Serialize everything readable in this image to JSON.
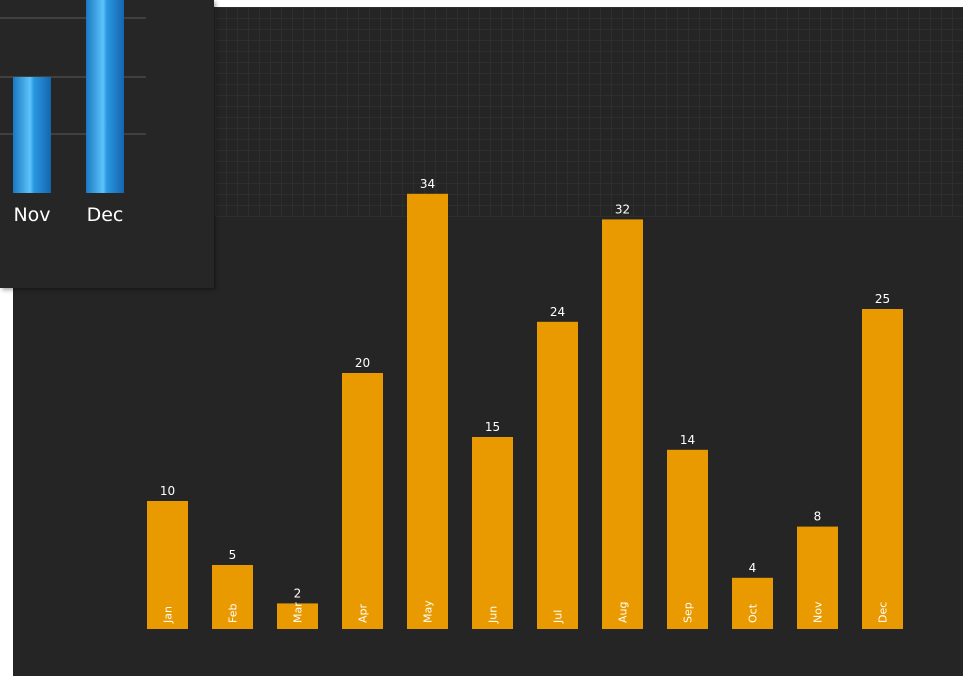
{
  "chart_data": [
    {
      "type": "bar",
      "categories": [
        "Jan",
        "Feb",
        "Mar",
        "Apr",
        "May",
        "Jun",
        "Jul",
        "Aug",
        "Sep",
        "Oct",
        "Nov",
        "Dec"
      ],
      "values": [
        10,
        5,
        2,
        20,
        34,
        15,
        24,
        32,
        14,
        4,
        8,
        25
      ],
      "title": "",
      "xlabel": "",
      "ylabel": "",
      "ylim": [
        0,
        34
      ],
      "grid": false,
      "data_labels": true,
      "bar_color": "#E89A00"
    },
    {
      "type": "bar",
      "categories": [
        "Nov",
        "Dec"
      ],
      "values": [
        null,
        null
      ],
      "title": "",
      "grid": true,
      "bar_color": "#2E9FE6",
      "partially_visible": true
    }
  ],
  "colors": {
    "background": "#252525",
    "bar_main": "#E89A00",
    "bar_inset": "#2E9FE6",
    "text": "#FFFFFF",
    "grid_inset": "#5A5A5A"
  }
}
